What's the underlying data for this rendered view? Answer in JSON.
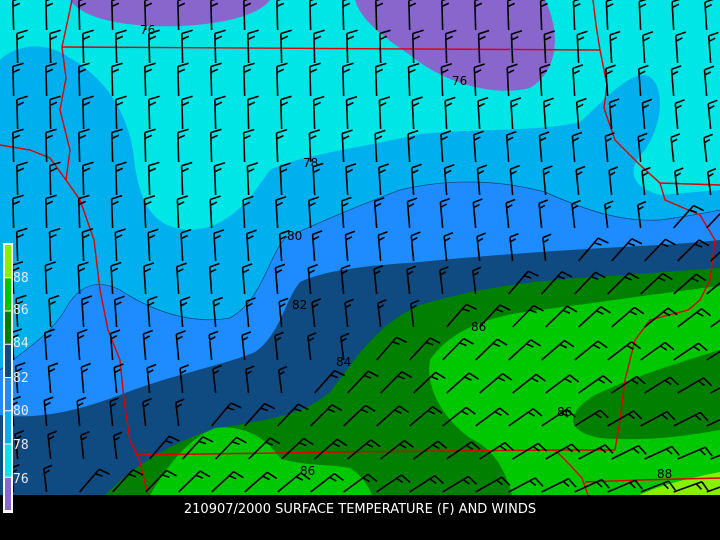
{
  "caption": "210907/2000 SURFACE TEMPERATURE (F) AND WINDS",
  "legend": {
    "labels": [
      "88",
      "86",
      "84",
      "82",
      "80",
      "78",
      "76"
    ],
    "bands": [
      {
        "range": ">88",
        "color": "#86f000"
      },
      {
        "range": "86-88",
        "color": "#00c800"
      },
      {
        "range": "84-86",
        "color": "#007f00"
      },
      {
        "range": "82-84",
        "color": "#0f4a80"
      },
      {
        "range": "80-82",
        "color": "#1e8cff"
      },
      {
        "range": "78-80",
        "color": "#00b0ee"
      },
      {
        "range": "76-78",
        "color": "#00e6e6"
      },
      {
        "range": "<76",
        "color": "#8866cc"
      }
    ]
  },
  "contour_labels": [
    "76",
    "76",
    "78",
    "80",
    "82",
    "84",
    "86",
    "86",
    "88",
    "86",
    "86"
  ],
  "colors": {
    "border": "#e00000",
    "barb": "#000000",
    "background": "#000000"
  }
}
